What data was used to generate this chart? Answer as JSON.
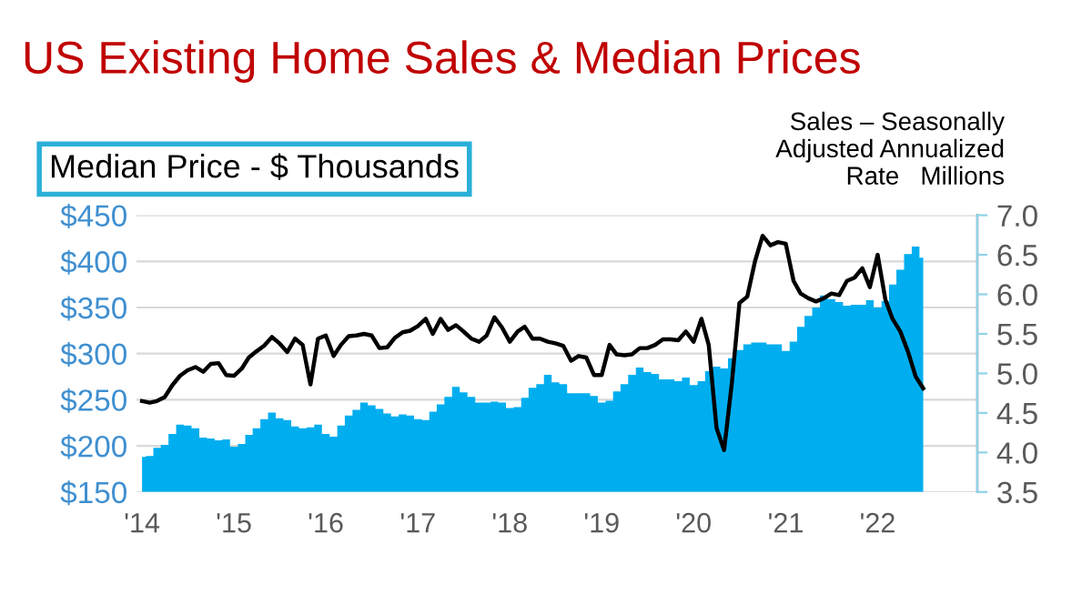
{
  "chart_data": {
    "type": "area",
    "title": "US Existing Home Sales & Median Prices",
    "ylabel": "Median Price - $ Thousands",
    "y2label": "Sales – Seasonally\nAdjusted Annualized\nRate   Millions",
    "x": [
      "2014-01",
      "2014-02",
      "2014-03",
      "2014-04",
      "2014-05",
      "2014-06",
      "2014-07",
      "2014-08",
      "2014-09",
      "2014-10",
      "2014-11",
      "2014-12",
      "2015-01",
      "2015-02",
      "2015-03",
      "2015-04",
      "2015-05",
      "2015-06",
      "2015-07",
      "2015-08",
      "2015-09",
      "2015-10",
      "2015-11",
      "2015-12",
      "2016-01",
      "2016-02",
      "2016-03",
      "2016-04",
      "2016-05",
      "2016-06",
      "2016-07",
      "2016-08",
      "2016-09",
      "2016-10",
      "2016-11",
      "2016-12",
      "2017-01",
      "2017-02",
      "2017-03",
      "2017-04",
      "2017-05",
      "2017-06",
      "2017-07",
      "2017-08",
      "2017-09",
      "2017-10",
      "2017-11",
      "2017-12",
      "2018-01",
      "2018-02",
      "2018-03",
      "2018-04",
      "2018-05",
      "2018-06",
      "2018-07",
      "2018-08",
      "2018-09",
      "2018-10",
      "2018-11",
      "2018-12",
      "2019-01",
      "2019-02",
      "2019-03",
      "2019-04",
      "2019-05",
      "2019-06",
      "2019-07",
      "2019-08",
      "2019-09",
      "2019-10",
      "2019-11",
      "2019-12",
      "2020-01",
      "2020-02",
      "2020-03",
      "2020-04",
      "2020-05",
      "2020-06",
      "2020-07",
      "2020-08",
      "2020-09",
      "2020-10",
      "2020-11",
      "2020-12",
      "2021-01",
      "2021-02",
      "2021-03",
      "2021-04",
      "2021-05",
      "2021-06",
      "2021-07",
      "2021-08",
      "2021-09",
      "2021-10",
      "2021-11",
      "2021-12",
      "2022-01",
      "2022-02",
      "2022-03",
      "2022-04",
      "2022-05",
      "2022-06",
      "2022-07"
    ],
    "series": [
      {
        "color": "#00aeef",
        "axis": "y",
        "values": [
          188,
          189,
          198,
          201,
          213,
          223,
          222,
          219,
          209,
          208,
          206,
          207,
          199,
          202,
          212,
          219,
          229,
          236,
          230,
          228,
          221,
          219,
          220,
          223,
          213,
          210,
          222,
          233,
          239,
          247,
          244,
          240,
          235,
          232,
          234,
          233,
          229,
          228,
          237,
          245,
          253,
          264,
          258,
          253,
          247,
          247,
          248,
          247,
          241,
          242,
          252,
          263,
          267,
          277,
          269,
          267,
          257,
          257,
          257,
          254,
          247,
          249,
          259,
          267,
          277,
          285,
          280,
          278,
          272,
          272,
          270,
          274,
          266,
          270,
          281,
          286,
          284,
          295,
          304,
          310,
          312,
          312,
          310,
          310,
          303,
          313,
          329,
          341,
          350,
          363,
          359,
          356,
          352,
          353,
          353,
          358,
          350,
          357,
          375,
          391,
          408,
          416,
          404
        ]
      },
      {
        "type": "line",
        "color": "#000000",
        "axis": "y2",
        "values": [
          4.65,
          4.63,
          4.65,
          4.7,
          4.85,
          4.97,
          5.04,
          5.08,
          5.02,
          5.12,
          5.13,
          4.98,
          4.97,
          5.06,
          5.2,
          5.28,
          5.35,
          5.46,
          5.38,
          5.27,
          5.44,
          5.36,
          4.86,
          5.44,
          5.48,
          5.22,
          5.36,
          5.47,
          5.48,
          5.5,
          5.48,
          5.32,
          5.33,
          5.45,
          5.52,
          5.54,
          5.6,
          5.69,
          5.5,
          5.69,
          5.55,
          5.61,
          5.53,
          5.44,
          5.4,
          5.48,
          5.71,
          5.58,
          5.4,
          5.53,
          5.59,
          5.44,
          5.44,
          5.4,
          5.38,
          5.35,
          5.16,
          5.22,
          5.2,
          4.98,
          4.98,
          5.36,
          5.24,
          5.23,
          5.24,
          5.32,
          5.32,
          5.36,
          5.43,
          5.43,
          5.42,
          5.53,
          5.4,
          5.69,
          5.36,
          4.31,
          4.03,
          4.88,
          5.89,
          5.97,
          6.42,
          6.74,
          6.62,
          6.66,
          6.64,
          6.17,
          6.01,
          5.95,
          5.91,
          5.95,
          6.01,
          5.99,
          6.17,
          6.21,
          6.33,
          6.09,
          6.5,
          5.93,
          5.69,
          5.53,
          5.28,
          4.96,
          4.81
        ]
      }
    ],
    "xlim": [
      "2013-12-10",
      "2023-02-01"
    ],
    "xticks": [
      {
        "value": "2014-01-01",
        "label": "'14"
      },
      {
        "value": "2015-01-01",
        "label": "'15"
      },
      {
        "value": "2016-01-01",
        "label": "'16"
      },
      {
        "value": "2017-01-01",
        "label": "'17"
      },
      {
        "value": "2018-01-01",
        "label": "'18"
      },
      {
        "value": "2019-01-01",
        "label": "'19"
      },
      {
        "value": "2020-01-01",
        "label": "'20"
      },
      {
        "value": "2021-01-01",
        "label": "'21"
      },
      {
        "value": "2022-01-01",
        "label": "'22"
      }
    ],
    "ylim": [
      150,
      450
    ],
    "yticks": [
      {
        "value": 150,
        "label": "$150"
      },
      {
        "value": 200,
        "label": "$200"
      },
      {
        "value": 250,
        "label": "$250"
      },
      {
        "value": 300,
        "label": "$300"
      },
      {
        "value": 350,
        "label": "$350"
      },
      {
        "value": 400,
        "label": "$400"
      },
      {
        "value": 450,
        "label": "$450"
      }
    ],
    "y2lim": [
      3.5,
      7.0
    ],
    "y2ticks": [
      {
        "value": 3.5,
        "label": "3.5"
      },
      {
        "value": 4.0,
        "label": "4.0"
      },
      {
        "value": 4.5,
        "label": "4.5"
      },
      {
        "value": 5.0,
        "label": "5.0"
      },
      {
        "value": 5.5,
        "label": "5.5"
      },
      {
        "value": 6.0,
        "label": "6.0"
      },
      {
        "value": 6.5,
        "label": "6.5"
      },
      {
        "value": 7.0,
        "label": "7.0"
      }
    ],
    "grid": "y",
    "marker": "none",
    "line_style": "solid",
    "legend": false
  }
}
